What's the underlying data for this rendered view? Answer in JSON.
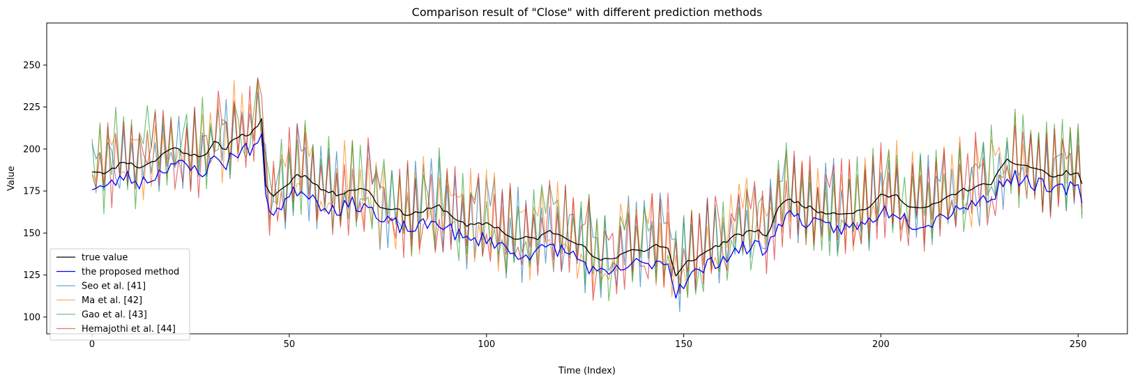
{
  "chart_data": {
    "type": "line",
    "title": "Comparison result of \"Close\" with different prediction methods",
    "xlabel": "Time (Index)",
    "ylabel": "Value",
    "xlim": [
      -11.5,
      262.5
    ],
    "ylim": [
      90,
      275
    ],
    "x_ticks": [
      0,
      50,
      100,
      150,
      200,
      250
    ],
    "y_ticks": [
      100,
      125,
      150,
      175,
      200,
      225,
      250
    ],
    "grid": false,
    "legend_position": "lower-left",
    "n_points": 252,
    "true_anchors": [
      [
        0,
        187
      ],
      [
        4,
        186
      ],
      [
        8,
        193
      ],
      [
        12,
        189
      ],
      [
        16,
        193
      ],
      [
        20,
        201
      ],
      [
        25,
        197
      ],
      [
        29,
        196
      ],
      [
        31,
        204
      ],
      [
        34,
        200
      ],
      [
        36,
        207
      ],
      [
        40,
        209
      ],
      [
        42,
        213
      ],
      [
        43,
        217
      ],
      [
        44,
        178
      ],
      [
        46,
        172
      ],
      [
        50,
        180
      ],
      [
        52,
        185
      ],
      [
        55,
        183
      ],
      [
        58,
        176
      ],
      [
        62,
        173
      ],
      [
        66,
        176
      ],
      [
        70,
        176
      ],
      [
        73,
        165
      ],
      [
        76,
        165
      ],
      [
        80,
        161
      ],
      [
        84,
        163
      ],
      [
        88,
        166
      ],
      [
        92,
        159
      ],
      [
        95,
        154
      ],
      [
        100,
        156
      ],
      [
        103,
        153
      ],
      [
        107,
        146
      ],
      [
        110,
        147
      ],
      [
        113,
        147
      ],
      [
        116,
        151
      ],
      [
        120,
        148
      ],
      [
        124,
        143
      ],
      [
        128,
        134
      ],
      [
        131,
        134
      ],
      [
        134,
        137
      ],
      [
        137,
        141
      ],
      [
        140,
        139
      ],
      [
        143,
        143
      ],
      [
        146,
        141
      ],
      [
        148,
        124
      ],
      [
        151,
        133
      ],
      [
        154,
        136
      ],
      [
        157,
        141
      ],
      [
        160,
        144
      ],
      [
        163,
        148
      ],
      [
        166,
        150
      ],
      [
        169,
        152
      ],
      [
        171,
        147
      ],
      [
        174,
        166
      ],
      [
        177,
        170
      ],
      [
        180,
        167
      ],
      [
        184,
        163
      ],
      [
        188,
        162
      ],
      [
        192,
        162
      ],
      [
        196,
        164
      ],
      [
        200,
        172
      ],
      [
        204,
        172
      ],
      [
        208,
        165
      ],
      [
        212,
        165
      ],
      [
        216,
        170
      ],
      [
        220,
        175
      ],
      [
        224,
        177
      ],
      [
        228,
        180
      ],
      [
        232,
        193
      ],
      [
        235,
        191
      ],
      [
        240,
        188
      ],
      [
        244,
        183
      ],
      [
        247,
        186
      ],
      [
        250,
        185
      ],
      [
        251,
        180
      ]
    ],
    "series": [
      {
        "name": "true value",
        "color": "#000000",
        "width": 1.3,
        "opacity": 1.0,
        "kind": "truth",
        "noise": 1.2,
        "offset": 0,
        "amp": 0,
        "seed": 11
      },
      {
        "name": "the proposed method",
        "color": "#0000ff",
        "width": 1.3,
        "opacity": 1.0,
        "kind": "tracking",
        "noise": 4.5,
        "offset": -9,
        "amp": 0,
        "seed": 23
      },
      {
        "name": "Seo et al. [41]",
        "color": "#1f77b4",
        "width": 1.2,
        "opacity": 0.65,
        "kind": "noisy",
        "noise": 0,
        "offset": 3,
        "amp": 30,
        "seed": 37
      },
      {
        "name": "Ma et al. [42]",
        "color": "#ff7f0e",
        "width": 1.2,
        "opacity": 0.65,
        "kind": "noisy",
        "noise": 0,
        "offset": 4,
        "amp": 30,
        "seed": 53
      },
      {
        "name": "Gao et al. [43]",
        "color": "#2ca02c",
        "width": 1.2,
        "opacity": 0.65,
        "kind": "noisy",
        "noise": 0,
        "offset": 5,
        "amp": 31,
        "seed": 71
      },
      {
        "name": "Hemajothi et al. [44]",
        "color": "#d62728",
        "width": 1.2,
        "opacity": 0.65,
        "kind": "noisy",
        "noise": 0,
        "offset": 3,
        "amp": 30,
        "seed": 97
      }
    ]
  }
}
